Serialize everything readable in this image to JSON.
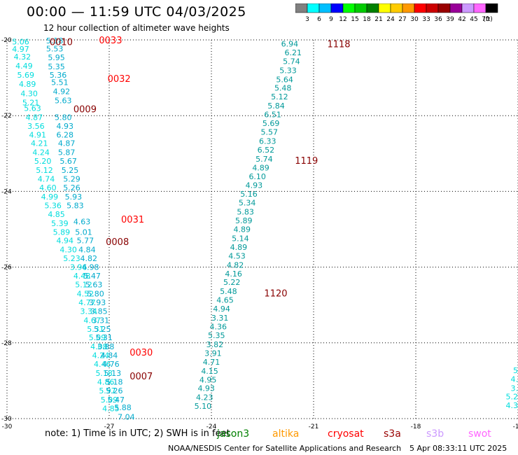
{
  "header": {
    "title": "00:00 — 11:59 UTC 04/03/2025",
    "subtitle": "12 hour collection of altimeter wave heights"
  },
  "colorbar": {
    "colors": [
      "#808080",
      "#00ffff",
      "#00bfff",
      "#0000ff",
      "#00ff00",
      "#00cc00",
      "#008000",
      "#ffff00",
      "#ffcc00",
      "#ff9900",
      "#ff0000",
      "#cc0000",
      "#990000",
      "#990099",
      "#cc99ff",
      "#ff66ff",
      "#000000"
    ],
    "labels": [
      "3",
      "6",
      "9",
      "12",
      "15",
      "18",
      "21",
      "24",
      "27",
      "30",
      "33",
      "36",
      "39",
      "42",
      "45",
      "70"
    ],
    "unit": "(ft)"
  },
  "chart_data": {
    "type": "scatter",
    "title": "",
    "xlabel": "",
    "ylabel": "",
    "xlim": [
      -30,
      -15
    ],
    "ylim": [
      -30,
      -20
    ],
    "grid": true,
    "xticks": [
      -30,
      -27,
      -24,
      -21,
      -18,
      -15
    ],
    "yticks": [
      -20,
      -22,
      -24,
      -26,
      -28,
      -30
    ],
    "tick_labels_x": [
      "-30",
      "-27",
      "-24",
      "-21",
      "-18",
      "-15"
    ],
    "tick_labels_y": [
      "-20",
      "-22",
      "-24",
      "-26",
      "-28",
      "-30"
    ],
    "series": [
      {
        "color": "#00dddd",
        "points": [
          {
            "x": -29.6,
            "y": -20.05,
            "label": "5.06"
          },
          {
            "x": -29.6,
            "y": -20.24,
            "label": "4.97"
          },
          {
            "x": -29.55,
            "y": -20.44,
            "label": "4.32"
          },
          {
            "x": -29.5,
            "y": -20.68,
            "label": "4.49"
          },
          {
            "x": -29.45,
            "y": -20.92,
            "label": "5.69"
          },
          {
            "x": -29.4,
            "y": -21.16,
            "label": "4.89"
          },
          {
            "x": -29.35,
            "y": -21.41,
            "label": "4.30"
          },
          {
            "x": -29.3,
            "y": -21.65,
            "label": "5.21"
          },
          {
            "x": -29.25,
            "y": -21.8,
            "label": "5.63"
          },
          {
            "x": -29.2,
            "y": -22.04,
            "label": "4.87"
          },
          {
            "x": -29.15,
            "y": -22.27,
            "label": "3.56"
          },
          {
            "x": -29.1,
            "y": -22.5,
            "label": "4.91"
          },
          {
            "x": -29.05,
            "y": -22.73,
            "label": "4.21"
          },
          {
            "x": -29.0,
            "y": -22.97,
            "label": "4.24"
          },
          {
            "x": -28.95,
            "y": -23.2,
            "label": "5.20"
          },
          {
            "x": -28.9,
            "y": -23.44,
            "label": "5.12"
          },
          {
            "x": -28.85,
            "y": -23.67,
            "label": "4.74"
          },
          {
            "x": -28.8,
            "y": -23.9,
            "label": "4.60"
          },
          {
            "x": -28.75,
            "y": -24.14,
            "label": "4.99"
          },
          {
            "x": -28.65,
            "y": -24.37,
            "label": "5.36"
          },
          {
            "x": -28.55,
            "y": -24.6,
            "label": "4.85"
          },
          {
            "x": -28.45,
            "y": -24.84,
            "label": "5.39"
          },
          {
            "x": -28.4,
            "y": -25.07,
            "label": "5.89"
          },
          {
            "x": -28.3,
            "y": -25.3,
            "label": "4.94"
          },
          {
            "x": -28.2,
            "y": -25.54,
            "label": "4.30"
          },
          {
            "x": -28.1,
            "y": -25.77,
            "label": "5.23"
          },
          {
            "x": -27.9,
            "y": -26.0,
            "label": "3.96"
          },
          {
            "x": -27.8,
            "y": -26.23,
            "label": "4.48"
          },
          {
            "x": -27.75,
            "y": -26.46,
            "label": "5.12"
          },
          {
            "x": -27.7,
            "y": -26.7,
            "label": "4.52"
          },
          {
            "x": -27.65,
            "y": -26.93,
            "label": "4.77"
          },
          {
            "x": -27.6,
            "y": -27.16,
            "label": "3.34"
          },
          {
            "x": -27.5,
            "y": -27.4,
            "label": "4.67"
          },
          {
            "x": -27.4,
            "y": -27.63,
            "label": "5.31"
          },
          {
            "x": -27.35,
            "y": -27.86,
            "label": "5.09"
          },
          {
            "x": -27.3,
            "y": -28.1,
            "label": "4.08"
          },
          {
            "x": -27.25,
            "y": -28.33,
            "label": "4.24"
          },
          {
            "x": -27.2,
            "y": -28.56,
            "label": "4.46"
          },
          {
            "x": -27.15,
            "y": -28.8,
            "label": "5.18"
          },
          {
            "x": -27.1,
            "y": -29.03,
            "label": "4.86"
          },
          {
            "x": -27.05,
            "y": -29.26,
            "label": "5.97"
          },
          {
            "x": -27.0,
            "y": -29.5,
            "label": "5.09"
          },
          {
            "x": -26.95,
            "y": -29.73,
            "label": "4.85"
          }
        ]
      },
      {
        "color": "#00aacc",
        "points": [
          {
            "x": -28.6,
            "y": -20.02,
            "label": "5.18"
          },
          {
            "x": -28.6,
            "y": -20.23,
            "label": "5.53"
          },
          {
            "x": -28.55,
            "y": -20.46,
            "label": "5.95"
          },
          {
            "x": -28.55,
            "y": -20.7,
            "label": "5.35"
          },
          {
            "x": -28.5,
            "y": -20.92,
            "label": "5.36"
          },
          {
            "x": -28.45,
            "y": -21.12,
            "label": "5.51"
          },
          {
            "x": -28.4,
            "y": -21.36,
            "label": "4.92"
          },
          {
            "x": -28.35,
            "y": -21.6,
            "label": "5.63"
          },
          {
            "x": -28.35,
            "y": -22.04,
            "label": "5.80"
          },
          {
            "x": -28.3,
            "y": -22.27,
            "label": "4.93"
          },
          {
            "x": -28.3,
            "y": -22.5,
            "label": "6.28"
          },
          {
            "x": -28.25,
            "y": -22.73,
            "label": "4.87"
          },
          {
            "x": -28.25,
            "y": -22.97,
            "label": "5.87"
          },
          {
            "x": -28.2,
            "y": -23.2,
            "label": "5.67"
          },
          {
            "x": -28.15,
            "y": -23.44,
            "label": "5.25"
          },
          {
            "x": -28.1,
            "y": -23.67,
            "label": "5.29"
          },
          {
            "x": -28.1,
            "y": -23.9,
            "label": "5.26"
          },
          {
            "x": -28.05,
            "y": -24.14,
            "label": "5.93"
          },
          {
            "x": -28.0,
            "y": -24.37,
            "label": "5.83"
          },
          {
            "x": -27.8,
            "y": -24.8,
            "label": "4.63"
          },
          {
            "x": -27.75,
            "y": -25.07,
            "label": "5.01"
          },
          {
            "x": -27.7,
            "y": -25.3,
            "label": "5.77"
          },
          {
            "x": -27.65,
            "y": -25.54,
            "label": "4.84"
          },
          {
            "x": -27.6,
            "y": -25.77,
            "label": "4.82"
          },
          {
            "x": -27.55,
            "y": -26.0,
            "label": "4.98"
          },
          {
            "x": -27.5,
            "y": -26.23,
            "label": "5.47"
          },
          {
            "x": -27.45,
            "y": -26.46,
            "label": "5.63"
          },
          {
            "x": -27.4,
            "y": -26.7,
            "label": "5.80"
          },
          {
            "x": -27.35,
            "y": -26.93,
            "label": "3.93"
          },
          {
            "x": -27.3,
            "y": -27.16,
            "label": "3.85"
          },
          {
            "x": -27.25,
            "y": -27.4,
            "label": "3.31"
          },
          {
            "x": -27.2,
            "y": -27.63,
            "label": "5.25"
          },
          {
            "x": -27.15,
            "y": -27.86,
            "label": "5.31"
          },
          {
            "x": -27.1,
            "y": -28.1,
            "label": "3.88"
          },
          {
            "x": -27.0,
            "y": -28.33,
            "label": "4.84"
          },
          {
            "x": -26.95,
            "y": -28.56,
            "label": "4.76"
          },
          {
            "x": -26.9,
            "y": -28.8,
            "label": "5.13"
          },
          {
            "x": -26.85,
            "y": -29.03,
            "label": "5.18"
          },
          {
            "x": -26.85,
            "y": -29.26,
            "label": "5.26"
          },
          {
            "x": -26.8,
            "y": -29.5,
            "label": "5.47"
          },
          {
            "x": -26.6,
            "y": -29.7,
            "label": "5.88"
          },
          {
            "x": -26.5,
            "y": -29.95,
            "label": "7.04"
          }
        ]
      },
      {
        "color": "#009999",
        "points": [
          {
            "x": -21.7,
            "y": -20.1,
            "label": "6.94"
          },
          {
            "x": -21.6,
            "y": -20.33,
            "label": "6.21"
          },
          {
            "x": -21.65,
            "y": -20.56,
            "label": "5.74"
          },
          {
            "x": -21.75,
            "y": -20.8,
            "label": "5.33"
          },
          {
            "x": -21.85,
            "y": -21.04,
            "label": "5.64"
          },
          {
            "x": -21.9,
            "y": -21.27,
            "label": "5.48"
          },
          {
            "x": -22.0,
            "y": -21.5,
            "label": "5.12"
          },
          {
            "x": -22.1,
            "y": -21.74,
            "label": "5.84"
          },
          {
            "x": -22.2,
            "y": -21.97,
            "label": "6.51"
          },
          {
            "x": -22.25,
            "y": -22.2,
            "label": "5.69"
          },
          {
            "x": -22.3,
            "y": -22.43,
            "label": "5.57"
          },
          {
            "x": -22.35,
            "y": -22.67,
            "label": "6.33"
          },
          {
            "x": -22.4,
            "y": -22.9,
            "label": "6.52"
          },
          {
            "x": -22.45,
            "y": -23.14,
            "label": "5.74"
          },
          {
            "x": -22.55,
            "y": -23.37,
            "label": "4.89"
          },
          {
            "x": -22.65,
            "y": -23.6,
            "label": "6.10"
          },
          {
            "x": -22.75,
            "y": -23.84,
            "label": "4.93"
          },
          {
            "x": -22.9,
            "y": -24.07,
            "label": "5.16"
          },
          {
            "x": -22.95,
            "y": -24.3,
            "label": "5.34"
          },
          {
            "x": -23.0,
            "y": -24.54,
            "label": "5.83"
          },
          {
            "x": -23.05,
            "y": -24.77,
            "label": "5.89"
          },
          {
            "x": -23.1,
            "y": -25.0,
            "label": "4.89"
          },
          {
            "x": -23.15,
            "y": -25.24,
            "label": "5.14"
          },
          {
            "x": -23.2,
            "y": -25.47,
            "label": "4.89"
          },
          {
            "x": -23.25,
            "y": -25.7,
            "label": "4.53"
          },
          {
            "x": -23.3,
            "y": -25.94,
            "label": "4.82"
          },
          {
            "x": -23.35,
            "y": -26.17,
            "label": "4.16"
          },
          {
            "x": -23.4,
            "y": -26.4,
            "label": "5.22"
          },
          {
            "x": -23.5,
            "y": -26.64,
            "label": "5.48"
          },
          {
            "x": -23.6,
            "y": -26.87,
            "label": "4.65"
          },
          {
            "x": -23.7,
            "y": -27.1,
            "label": "4.94"
          },
          {
            "x": -23.75,
            "y": -27.34,
            "label": "3.31"
          },
          {
            "x": -23.8,
            "y": -27.57,
            "label": "4.36"
          },
          {
            "x": -23.85,
            "y": -27.8,
            "label": "5.35"
          },
          {
            "x": -23.9,
            "y": -28.04,
            "label": "3.82"
          },
          {
            "x": -23.95,
            "y": -28.27,
            "label": "3.91"
          },
          {
            "x": -24.0,
            "y": -28.5,
            "label": "4.71"
          },
          {
            "x": -24.05,
            "y": -28.74,
            "label": "4.15"
          },
          {
            "x": -24.1,
            "y": -28.97,
            "label": "4.95"
          },
          {
            "x": -24.15,
            "y": -29.2,
            "label": "4.93"
          },
          {
            "x": -24.2,
            "y": -29.44,
            "label": "4.23"
          },
          {
            "x": -24.25,
            "y": -29.67,
            "label": "5.10"
          }
        ]
      }
    ],
    "time_labels": [
      {
        "text": "0010",
        "x": -28.75,
        "y": -20.05,
        "color": "#880000"
      },
      {
        "text": "0033",
        "x": -27.3,
        "y": -20.0,
        "color": "#ff0000"
      },
      {
        "text": "0032",
        "x": -27.05,
        "y": -21.02,
        "color": "#ff0000"
      },
      {
        "text": "0009",
        "x": -28.05,
        "y": -21.82,
        "color": "#880000"
      },
      {
        "text": "1118",
        "x": -20.6,
        "y": -20.1,
        "color": "#880000"
      },
      {
        "text": "1119",
        "x": -21.55,
        "y": -23.18,
        "color": "#880000"
      },
      {
        "text": "0031",
        "x": -26.65,
        "y": -24.73,
        "color": "#ff0000"
      },
      {
        "text": "0008",
        "x": -27.1,
        "y": -25.32,
        "color": "#880000"
      },
      {
        "text": "1120",
        "x": -22.45,
        "y": -26.68,
        "color": "#880000"
      },
      {
        "text": "0030",
        "x": -26.4,
        "y": -28.24,
        "color": "#ff0000"
      },
      {
        "text": "0007",
        "x": -26.4,
        "y": -28.87,
        "color": "#880000"
      }
    ],
    "edge_labels": [
      {
        "text": "5",
        "x": -14.9,
        "y": -28.72
      },
      {
        "text": "4.",
        "x": -14.9,
        "y": -28.96
      },
      {
        "text": "3.",
        "x": -14.9,
        "y": -29.2
      },
      {
        "text": "5.2",
        "x": -14.9,
        "y": -29.42
      },
      {
        "text": "4.3",
        "x": -14.9,
        "y": -29.65
      }
    ]
  },
  "footer": {
    "note": "note: 1) Time is in UTC; 2) SWH is in feet",
    "legend": [
      {
        "label": "jason3",
        "color": "#008000"
      },
      {
        "label": "altika",
        "color": "#ff9900"
      },
      {
        "label": "cryosat",
        "color": "#ff0000"
      },
      {
        "label": "s3a",
        "color": "#990000"
      },
      {
        "label": "s3b",
        "color": "#cc99ff"
      },
      {
        "label": "swot",
        "color": "#ff66ff"
      }
    ],
    "credit": "NOAA/NESDIS Center for Satellite Applications and Research",
    "generated": "5 Apr 08:33:11 UTC 2025"
  }
}
